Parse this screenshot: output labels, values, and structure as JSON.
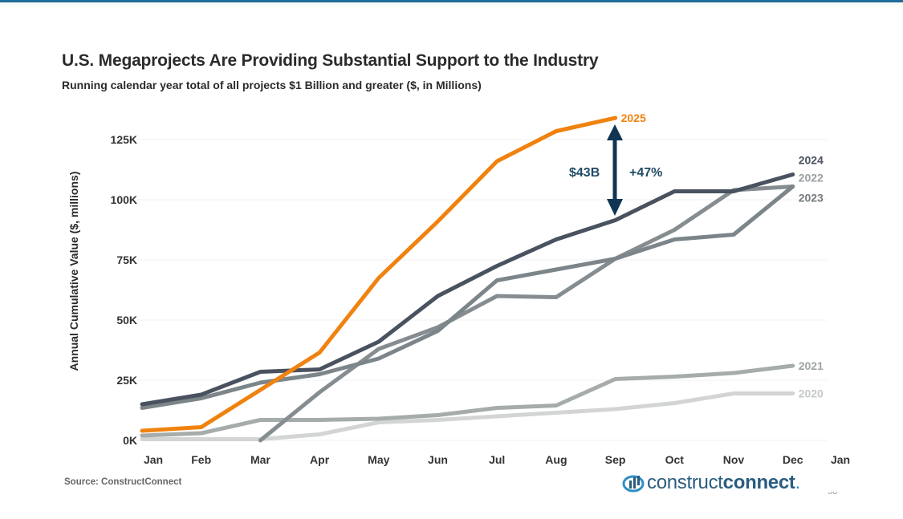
{
  "slide": {
    "title": "U.S. Megaprojects Are Providing Substantial Support to the Industry",
    "subtitle": "Running calendar year total of all projects $1 Billion and greater ($, in Millions)",
    "source": "Source: ConstructConnect",
    "page_number": "58",
    "logo": {
      "word1": "construct",
      "word2": "connect",
      "dot": "."
    },
    "accent_color": "#1f6b99"
  },
  "chart_data": {
    "type": "line",
    "title": "U.S. Megaprojects Are Providing Substantial Support to the Industry",
    "subtitle": "Running calendar year total of all projects $1 Billion and greater ($, in Millions)",
    "xlabel": "",
    "ylabel": "Annual Cumulative Value ($, millions)",
    "categories": [
      "Jan",
      "Feb",
      "Mar",
      "Apr",
      "May",
      "Jun",
      "Jul",
      "Aug",
      "Sep",
      "Oct",
      "Nov",
      "Dec",
      "Jan"
    ],
    "ylim": [
      0,
      125000
    ],
    "yticks": [
      0,
      25000,
      50000,
      75000,
      100000,
      125000
    ],
    "ytick_labels": [
      "0K",
      "25K",
      "50K",
      "75K",
      "100K",
      "125K"
    ],
    "grid": true,
    "legend": "direct-labels-right",
    "series": [
      {
        "name": "2020",
        "color": "#d3d5d5",
        "label_color": "#c6c9c9",
        "values": [
          500,
          500,
          500,
          2500,
          7500,
          8500,
          10000,
          11500,
          13000,
          15500,
          19500,
          19500
        ]
      },
      {
        "name": "2021",
        "color": "#a6acab",
        "label_color": "#9ea4a4",
        "values": [
          2000,
          3000,
          8500,
          8500,
          9000,
          10500,
          13500,
          14500,
          25500,
          26500,
          28000,
          31000
        ]
      },
      {
        "name": "2023",
        "color": "#868d91",
        "label_color": "#747c80",
        "values": [
          null,
          null,
          0,
          20000,
          38000,
          47000,
          60000,
          59500,
          75500,
          87500,
          104000,
          105500
        ]
      },
      {
        "name": "2022",
        "color": "#7c8589",
        "label_color": "#9aa0a3",
        "values": [
          13500,
          17500,
          24000,
          27500,
          34000,
          45500,
          66500,
          71000,
          75500,
          83500,
          85500,
          105500
        ]
      },
      {
        "name": "2024",
        "color": "#4a5260",
        "label_color": "#4a5260",
        "values": [
          15000,
          19000,
          28500,
          29500,
          41000,
          60000,
          72500,
          83500,
          91500,
          103500,
          103500,
          110500
        ]
      },
      {
        "name": "2025",
        "color": "#f0820f",
        "label_color": "#f0820f",
        "values": [
          4000,
          5500,
          null,
          36500,
          67500,
          91000,
          116000,
          128500,
          134000,
          null,
          null,
          null
        ]
      }
    ],
    "annotations": [
      {
        "type": "double-arrow",
        "month": "Sep",
        "from_series": "2024",
        "to_series": "2025",
        "color": "#0f3553"
      },
      {
        "text": "$43B",
        "color": "#1f4a66"
      },
      {
        "text": "+47%",
        "color": "#1f4a66"
      }
    ]
  }
}
